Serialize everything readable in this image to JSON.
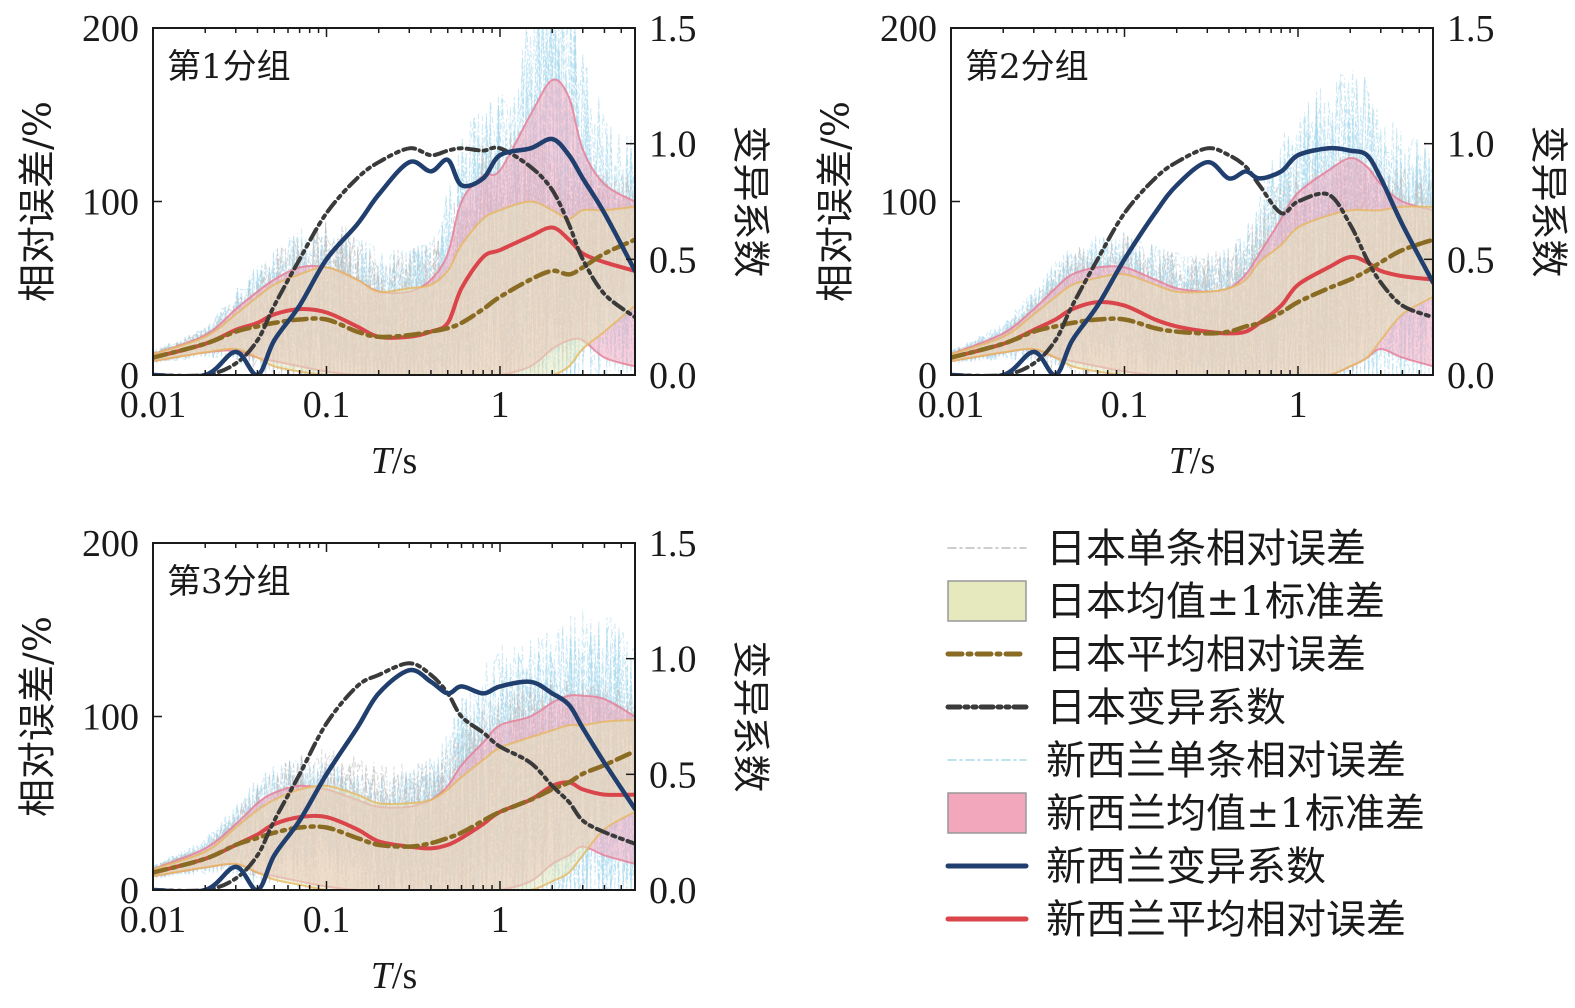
{
  "x_axis_title_italic": "T",
  "x_axis_title_rest": "/s",
  "colors": {
    "jp_individual": "#bdbdbd",
    "jp_band": "#e6e8bd",
    "jp_mean": "#8a6b23",
    "jp_cv": "#3a3a3a",
    "nz_individual": "#a8d8ec",
    "nz_band": "#f2a7bd",
    "nz_cv": "#213f6e",
    "nz_mean": "#d9454a"
  },
  "legend": [
    {
      "key": "jp_individual",
      "label": "日本单条相对误差",
      "style": "thin-dashdot"
    },
    {
      "key": "jp_band",
      "label": "日本均值±1标准差",
      "style": "patch"
    },
    {
      "key": "jp_mean",
      "label": "日本平均相对误差",
      "style": "thick-dashdot"
    },
    {
      "key": "jp_cv",
      "label": "日本变异系数",
      "style": "thick-dashdotdot"
    },
    {
      "key": "nz_individual",
      "label": "新西兰单条相对误差",
      "style": "thin-dashdot"
    },
    {
      "key": "nz_band",
      "label": "新西兰均值±1标准差",
      "style": "patch"
    },
    {
      "key": "nz_cv",
      "label": "新西兰变异系数",
      "style": "solid"
    },
    {
      "key": "nz_mean",
      "label": "新西兰平均相对误差",
      "style": "solid"
    }
  ],
  "chart_data": [
    {
      "type": "line",
      "panel_label": "第1分组",
      "xscale": "log",
      "xlim": [
        0.01,
        6
      ],
      "xticks": [
        0.01,
        0.1,
        1
      ],
      "xtick_labels": [
        "0.01",
        "0.1",
        "1"
      ],
      "ylabel": "相对误差/%",
      "ylim": [
        0,
        200
      ],
      "yticks": [
        0,
        100,
        200
      ],
      "ylabel_right": "变异系数",
      "ylim_right": [
        0,
        1.5
      ],
      "yticks_right": [
        0.0,
        0.5,
        1.0,
        1.5
      ],
      "ytick_labels_right": [
        "0.0",
        "0.5",
        "1.0",
        "1.5"
      ],
      "x": [
        0.01,
        0.02,
        0.03,
        0.04,
        0.05,
        0.07,
        0.1,
        0.15,
        0.2,
        0.3,
        0.4,
        0.5,
        0.6,
        0.8,
        1.0,
        1.5,
        2.0,
        2.5,
        3.0,
        4.0,
        6.0
      ],
      "series": [
        {
          "name": "日本平均相对误差",
          "key": "jp_mean",
          "axis": "left",
          "values": [
            10,
            18,
            25,
            28,
            30,
            32,
            32,
            25,
            22,
            23,
            25,
            27,
            30,
            38,
            45,
            55,
            60,
            58,
            62,
            70,
            78
          ]
        },
        {
          "name": "日本均值±1标准差",
          "key": "jp_band",
          "axis": "left",
          "lower": [
            8,
            13,
            15,
            10,
            5,
            2,
            0,
            0,
            0,
            0,
            0,
            0,
            0,
            0,
            0,
            0,
            0,
            5,
            15,
            25,
            40
          ],
          "upper": [
            12,
            22,
            35,
            45,
            52,
            58,
            62,
            55,
            48,
            50,
            52,
            60,
            75,
            90,
            95,
            100,
            95,
            90,
            95,
            95,
            97
          ]
        },
        {
          "name": "日本变异系数",
          "key": "jp_cv",
          "axis": "right",
          "values": [
            0.0,
            0.0,
            0.05,
            0.15,
            0.3,
            0.5,
            0.7,
            0.85,
            0.92,
            0.98,
            0.95,
            0.97,
            0.98,
            0.97,
            0.98,
            0.9,
            0.8,
            0.65,
            0.5,
            0.35,
            0.25
          ]
        },
        {
          "name": "新西兰平均相对误差",
          "key": "nz_mean",
          "axis": "left",
          "values": [
            10,
            18,
            26,
            30,
            35,
            38,
            36,
            28,
            22,
            22,
            25,
            30,
            50,
            68,
            72,
            80,
            85,
            78,
            70,
            65,
            60
          ]
        },
        {
          "name": "新西兰均值±1标准差",
          "key": "nz_band",
          "axis": "left",
          "lower": [
            8,
            13,
            14,
            10,
            8,
            5,
            2,
            0,
            0,
            0,
            0,
            0,
            0,
            0,
            0,
            5,
            15,
            20,
            20,
            10,
            5
          ],
          "upper": [
            12,
            23,
            38,
            48,
            55,
            62,
            62,
            55,
            48,
            48,
            55,
            70,
            100,
            115,
            118,
            150,
            170,
            160,
            130,
            110,
            100
          ]
        },
        {
          "name": "新西兰变异系数",
          "key": "nz_cv",
          "axis": "right",
          "values": [
            0.0,
            0.0,
            0.1,
            0.0,
            0.15,
            0.3,
            0.5,
            0.65,
            0.78,
            0.92,
            0.88,
            0.93,
            0.82,
            0.85,
            0.95,
            0.98,
            1.02,
            0.95,
            0.85,
            0.7,
            0.45
          ]
        }
      ]
    },
    {
      "type": "line",
      "panel_label": "第2分组",
      "xscale": "log",
      "xlim": [
        0.01,
        6
      ],
      "xticks": [
        0.01,
        0.1,
        1
      ],
      "xtick_labels": [
        "0.01",
        "0.1",
        "1"
      ],
      "ylabel": "相对误差/%",
      "ylim": [
        0,
        200
      ],
      "yticks": [
        0,
        100,
        200
      ],
      "ylabel_right": "变异系数",
      "ylim_right": [
        0,
        1.5
      ],
      "yticks_right": [
        0.0,
        0.5,
        1.0,
        1.5
      ],
      "ytick_labels_right": [
        "0.0",
        "0.5",
        "1.0",
        "1.5"
      ],
      "x": [
        0.01,
        0.02,
        0.03,
        0.04,
        0.05,
        0.07,
        0.1,
        0.15,
        0.2,
        0.3,
        0.4,
        0.5,
        0.6,
        0.8,
        1.0,
        1.5,
        2.0,
        2.5,
        3.0,
        4.0,
        6.0
      ],
      "series": [
        {
          "name": "日本平均相对误差",
          "key": "jp_mean",
          "axis": "left",
          "values": [
            10,
            18,
            25,
            28,
            30,
            32,
            32,
            27,
            25,
            24,
            25,
            28,
            30,
            36,
            42,
            50,
            55,
            60,
            65,
            72,
            78
          ]
        },
        {
          "name": "日本均值±1标准差",
          "key": "jp_band",
          "axis": "left",
          "lower": [
            8,
            13,
            15,
            10,
            5,
            2,
            0,
            0,
            0,
            0,
            0,
            0,
            0,
            0,
            0,
            0,
            5,
            10,
            20,
            35,
            45
          ],
          "upper": [
            12,
            22,
            35,
            45,
            52,
            56,
            58,
            52,
            48,
            48,
            50,
            55,
            65,
            75,
            85,
            92,
            95,
            95,
            95,
            97,
            97
          ]
        },
        {
          "name": "日本变异系数",
          "key": "jp_cv",
          "axis": "right",
          "values": [
            0.0,
            0.0,
            0.05,
            0.15,
            0.3,
            0.5,
            0.7,
            0.85,
            0.92,
            0.98,
            0.95,
            0.9,
            0.82,
            0.7,
            0.75,
            0.78,
            0.65,
            0.5,
            0.4,
            0.3,
            0.25
          ]
        },
        {
          "name": "新西兰平均相对误差",
          "key": "nz_mean",
          "axis": "left",
          "values": [
            10,
            18,
            26,
            32,
            38,
            42,
            40,
            32,
            28,
            25,
            24,
            25,
            30,
            40,
            52,
            62,
            68,
            65,
            60,
            57,
            55
          ]
        },
        {
          "name": "新西兰均值±1标准差",
          "key": "nz_band",
          "axis": "left",
          "lower": [
            8,
            13,
            15,
            10,
            8,
            5,
            2,
            0,
            0,
            0,
            0,
            0,
            0,
            0,
            0,
            0,
            5,
            10,
            15,
            10,
            5
          ],
          "upper": [
            12,
            24,
            38,
            50,
            58,
            62,
            62,
            55,
            50,
            48,
            50,
            58,
            70,
            90,
            105,
            118,
            125,
            120,
            110,
            100,
            95
          ]
        },
        {
          "name": "新西兰变异系数",
          "key": "nz_cv",
          "axis": "right",
          "values": [
            0.0,
            0.0,
            0.1,
            0.0,
            0.15,
            0.3,
            0.5,
            0.7,
            0.82,
            0.92,
            0.85,
            0.88,
            0.85,
            0.88,
            0.95,
            0.98,
            0.97,
            0.95,
            0.85,
            0.65,
            0.4
          ]
        }
      ]
    },
    {
      "type": "line",
      "panel_label": "第3分组",
      "xscale": "log",
      "xlim": [
        0.01,
        6
      ],
      "xticks": [
        0.01,
        0.1,
        1
      ],
      "xtick_labels": [
        "0.01",
        "0.1",
        "1"
      ],
      "ylabel": "相对误差/%",
      "ylim": [
        0,
        200
      ],
      "yticks": [
        0,
        100,
        200
      ],
      "ylabel_right": "变异系数",
      "ylim_right": [
        0,
        1.5
      ],
      "yticks_right": [
        0.0,
        0.5,
        1.0,
        1.5
      ],
      "ytick_labels_right": [
        "0.0",
        "0.5",
        "1.0",
        "1.5"
      ],
      "x": [
        0.01,
        0.02,
        0.03,
        0.04,
        0.05,
        0.07,
        0.1,
        0.15,
        0.2,
        0.3,
        0.4,
        0.5,
        0.6,
        0.8,
        1.0,
        1.5,
        2.0,
        2.5,
        3.0,
        4.0,
        6.0
      ],
      "series": [
        {
          "name": "日本平均相对误差",
          "key": "jp_mean",
          "axis": "left",
          "values": [
            10,
            18,
            26,
            30,
            33,
            36,
            36,
            30,
            26,
            25,
            27,
            30,
            33,
            40,
            45,
            52,
            58,
            62,
            67,
            72,
            80
          ]
        },
        {
          "name": "日本均值±1标准差",
          "key": "jp_band",
          "axis": "left",
          "lower": [
            8,
            13,
            15,
            10,
            6,
            3,
            0,
            0,
            0,
            0,
            0,
            0,
            0,
            0,
            0,
            0,
            5,
            10,
            20,
            35,
            45
          ],
          "upper": [
            12,
            22,
            36,
            46,
            52,
            58,
            60,
            55,
            50,
            50,
            52,
            58,
            65,
            75,
            82,
            88,
            92,
            95,
            95,
            97,
            98
          ]
        },
        {
          "name": "日本变异系数",
          "key": "jp_cv",
          "axis": "right",
          "values": [
            0.0,
            0.0,
            0.05,
            0.15,
            0.3,
            0.5,
            0.72,
            0.88,
            0.93,
            0.98,
            0.93,
            0.85,
            0.75,
            0.68,
            0.62,
            0.55,
            0.45,
            0.38,
            0.3,
            0.25,
            0.2
          ]
        },
        {
          "name": "新西兰平均相对误差",
          "key": "nz_mean",
          "axis": "left",
          "values": [
            10,
            18,
            26,
            32,
            38,
            42,
            42,
            35,
            28,
            25,
            24,
            26,
            30,
            38,
            45,
            52,
            60,
            62,
            58,
            55,
            55
          ]
        },
        {
          "name": "新西兰均值±1标准差",
          "key": "nz_band",
          "axis": "left",
          "lower": [
            8,
            13,
            15,
            10,
            8,
            5,
            2,
            0,
            0,
            0,
            0,
            0,
            0,
            0,
            0,
            5,
            15,
            20,
            25,
            20,
            15
          ],
          "upper": [
            12,
            24,
            38,
            50,
            56,
            60,
            58,
            52,
            48,
            48,
            52,
            60,
            72,
            85,
            95,
            100,
            108,
            112,
            112,
            110,
            100
          ]
        },
        {
          "name": "新西兰变异系数",
          "key": "nz_cv",
          "axis": "right",
          "values": [
            0.0,
            0.0,
            0.1,
            0.0,
            0.15,
            0.3,
            0.5,
            0.7,
            0.85,
            0.95,
            0.9,
            0.85,
            0.88,
            0.85,
            0.88,
            0.9,
            0.85,
            0.8,
            0.7,
            0.55,
            0.35
          ]
        }
      ]
    }
  ]
}
